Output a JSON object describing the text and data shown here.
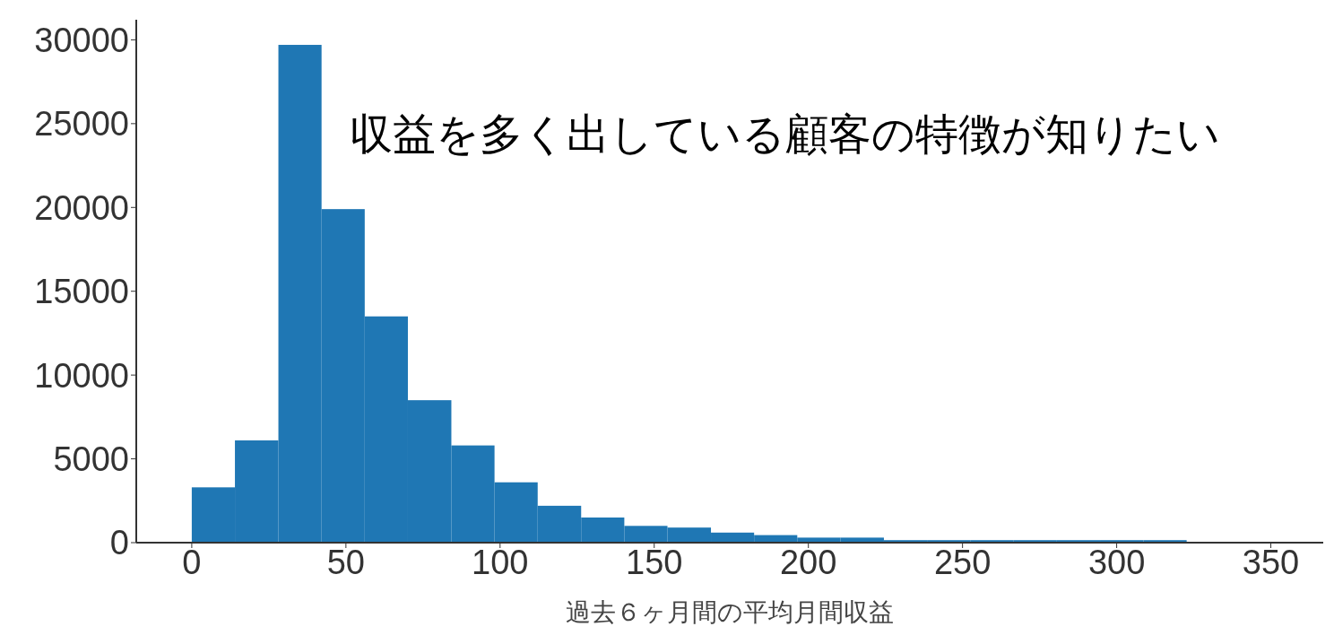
{
  "chart_data": {
    "type": "histogram",
    "xlabel": "過去６ヶ月間の平均月間収益",
    "bins": [
      0,
      14,
      28.1,
      42.1,
      56.1,
      70.1,
      84.2,
      98.2,
      112.2,
      126.3,
      140.3,
      154.3,
      168.4,
      182.4,
      196.4,
      210.4,
      224.5,
      238.5,
      252.5,
      266.6,
      280.6,
      294.6,
      308.7,
      322.7
    ],
    "values": [
      3300,
      6100,
      29700,
      19900,
      13500,
      8500,
      5800,
      3600,
      2200,
      1500,
      1000,
      900,
      600,
      450,
      300,
      300,
      150,
      150,
      150,
      150,
      150,
      150,
      150
    ],
    "color": "#1f77b4",
    "xlim": [
      -18,
      367
    ],
    "xticks": [
      0,
      50,
      100,
      150,
      200,
      250,
      300,
      350
    ],
    "ylim": [
      0,
      31200
    ],
    "yticks": [
      0,
      5000,
      10000,
      15000,
      20000,
      25000,
      30000
    ],
    "grid": false,
    "annotations": [
      "収益を多く出している顧客の特徴が知りたい"
    ]
  }
}
